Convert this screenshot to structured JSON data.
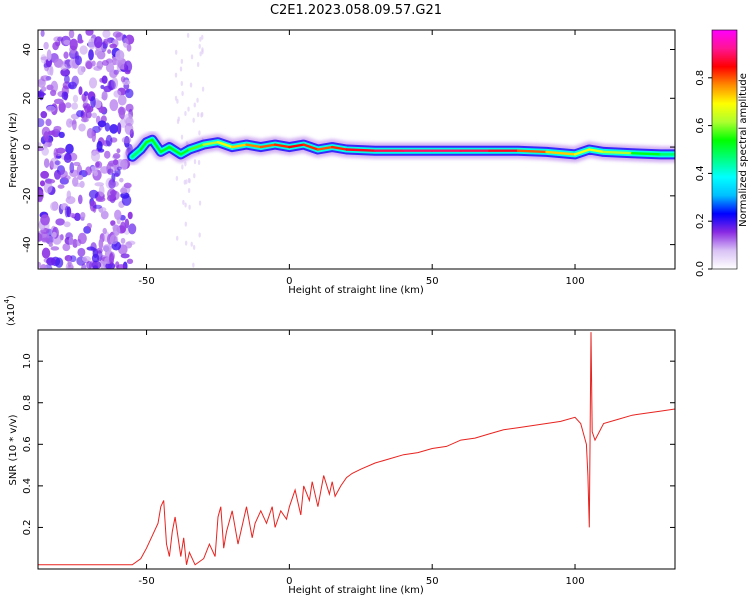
{
  "figure_title": "C2E1.2023.058.09.57.G21",
  "chart_data": [
    {
      "type": "heatmap",
      "title": "C2E1.2023.058.09.57.G21",
      "xlabel": "Height of straight line (km)",
      "ylabel": "Frequency (Hz)",
      "xlim": [
        -88,
        135
      ],
      "ylim": [
        -50,
        48
      ],
      "xticks": [
        -50,
        0,
        50,
        100
      ],
      "yticks": [
        -40,
        -20,
        0,
        20,
        40
      ],
      "xtick_labels": [
        "-50",
        "0",
        "50",
        "100"
      ],
      "ytick_labels": [
        "-40",
        "-20",
        "0",
        "20",
        "40"
      ],
      "colorbar": {
        "label": "Normalized spectral amplitude",
        "range": [
          0.0,
          1.0
        ],
        "ticks": [
          0.0,
          0.2,
          0.4,
          0.6,
          0.8
        ],
        "tick_labels": [
          "0.0",
          "0.2",
          "0.4",
          "0.6",
          "0.8"
        ],
        "colors": [
          "#ffffff",
          "#d9c2f5",
          "#8a2be2",
          "#0000ff",
          "#00bfff",
          "#00ffff",
          "#00ff7f",
          "#00ff00",
          "#adff2f",
          "#ffff00",
          "#ff8c00",
          "#ff0000",
          "#ff1493",
          "#ff00ff"
        ]
      },
      "noise_region_x": [
        -88,
        -55
      ],
      "sparse_noise_x": [
        -40,
        -30
      ],
      "ridge": {
        "x": [
          -55,
          -52,
          -50,
          -48,
          -45,
          -42,
          -38,
          -35,
          -30,
          -25,
          -20,
          -15,
          -10,
          -5,
          0,
          5,
          10,
          15,
          20,
          30,
          40,
          50,
          60,
          70,
          80,
          90,
          100,
          105,
          110,
          120,
          130,
          135
        ],
        "freq": [
          -4,
          -1,
          2,
          3,
          -2,
          0,
          -3,
          -1,
          1,
          2,
          0,
          1,
          0,
          1,
          0,
          1,
          -1,
          0,
          -1,
          -1.5,
          -1.5,
          -1.5,
          -1.5,
          -1.5,
          -1.5,
          -2,
          -3,
          -1,
          -2,
          -2.5,
          -3,
          -3
        ],
        "amplitude": [
          0.45,
          0.5,
          0.55,
          0.55,
          0.5,
          0.55,
          0.5,
          0.55,
          0.6,
          0.65,
          0.7,
          0.75,
          0.8,
          0.8,
          0.85,
          0.85,
          0.8,
          0.8,
          0.85,
          0.88,
          0.9,
          0.9,
          0.9,
          0.88,
          0.85,
          0.75,
          0.7,
          0.65,
          0.7,
          0.55,
          0.5,
          0.45
        ]
      },
      "grid": false
    },
    {
      "type": "line",
      "xlabel": "Height of straight line (km)",
      "ylabel": "SNR (10 * v/v)",
      "y_scale_label": "(x10",
      "y_scale_exponent": "4",
      "y_scale_suffix": ")",
      "xlim": [
        -88,
        135
      ],
      "ylim": [
        0,
        1.15
      ],
      "xticks": [
        -50,
        0,
        50,
        100
      ],
      "yticks": [
        0.2,
        0.4,
        0.6,
        0.8,
        1.0
      ],
      "xtick_labels": [
        "-50",
        "0",
        "50",
        "100"
      ],
      "ytick_labels": [
        "0.2",
        "0.4",
        "0.6",
        "0.8",
        "1.0"
      ],
      "series": [
        {
          "color": "#e8231f",
          "x": [
            -88,
            -70,
            -55,
            -52,
            -50,
            -48,
            -46,
            -45,
            -44,
            -43,
            -42,
            -41,
            -40,
            -38,
            -37,
            -36,
            -35,
            -33,
            -30,
            -28,
            -26,
            -25,
            -24,
            -23,
            -22,
            -20,
            -18,
            -16,
            -15,
            -13,
            -12,
            -10,
            -8,
            -6,
            -5,
            -3,
            -1,
            0,
            2,
            4,
            5,
            7,
            8,
            10,
            12,
            14,
            15,
            16,
            18,
            20,
            22,
            25,
            30,
            35,
            40,
            45,
            50,
            55,
            60,
            65,
            70,
            75,
            80,
            85,
            90,
            95,
            100,
            102,
            104,
            104.5,
            105,
            105.3,
            105.6,
            106,
            107,
            110,
            115,
            120,
            125,
            130,
            135
          ],
          "y": [
            0.02,
            0.02,
            0.02,
            0.05,
            0.1,
            0.16,
            0.22,
            0.3,
            0.33,
            0.12,
            0.06,
            0.18,
            0.25,
            0.06,
            0.15,
            0.02,
            0.08,
            0.02,
            0.05,
            0.12,
            0.06,
            0.25,
            0.3,
            0.1,
            0.18,
            0.28,
            0.12,
            0.24,
            0.3,
            0.15,
            0.22,
            0.28,
            0.22,
            0.3,
            0.2,
            0.28,
            0.24,
            0.3,
            0.38,
            0.26,
            0.4,
            0.33,
            0.42,
            0.3,
            0.45,
            0.36,
            0.42,
            0.35,
            0.4,
            0.44,
            0.46,
            0.48,
            0.51,
            0.53,
            0.55,
            0.56,
            0.58,
            0.59,
            0.62,
            0.63,
            0.65,
            0.67,
            0.68,
            0.69,
            0.7,
            0.71,
            0.73,
            0.7,
            0.6,
            0.45,
            0.2,
            0.7,
            1.14,
            0.66,
            0.62,
            0.7,
            0.72,
            0.74,
            0.75,
            0.76,
            0.77
          ]
        }
      ],
      "grid": false
    }
  ]
}
